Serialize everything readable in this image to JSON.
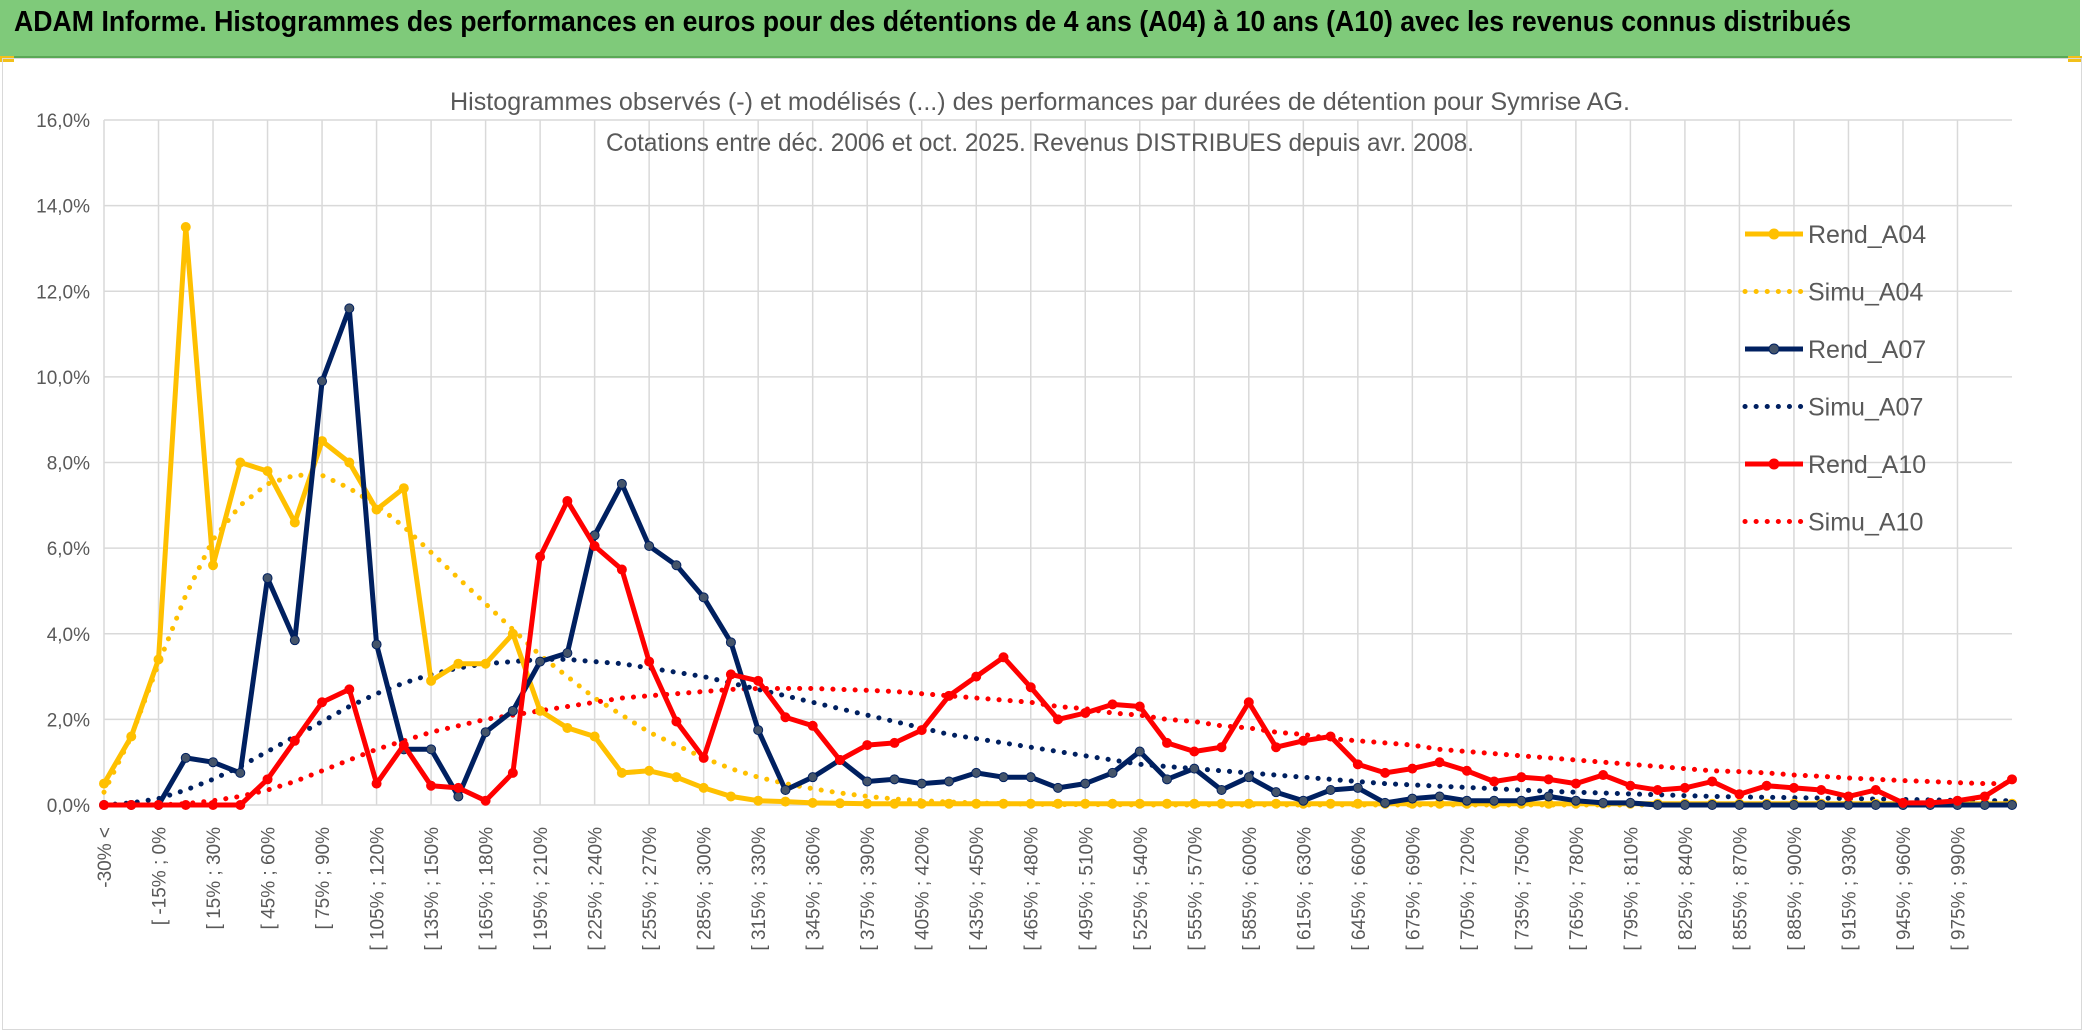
{
  "banner": {
    "title": "ADAM Informe. Histogrammes des performances en euros pour des détentions de 4 ans (A04) à 10 ans (A10) avec les revenus connus distribués"
  },
  "colors": {
    "banner": "#7fca7a",
    "A04": "#FFC000",
    "A07": "#002060",
    "A10": "#FF0000",
    "marker_A04": "#FFC000",
    "marker_A07": "#44546A",
    "marker_A10": "#FF0000"
  },
  "chart_data": {
    "type": "line",
    "title": "Histogrammes observés (-) et modélisés (...) des performances par durées de détention pour Symrise AG.",
    "subtitle": "Cotations entre déc. 2006 et oct. 2025. Revenus DISTRIBUES depuis avr. 2008.",
    "ylim": [
      0,
      16
    ],
    "yticks": [
      "0,0%",
      "2,0%",
      "4,0%",
      "6,0%",
      "8,0%",
      "10,0%",
      "12,0%",
      "14,0%",
      "16,0%"
    ],
    "grid": true,
    "legend_position": "right",
    "x_tick_labels": [
      "-30% <",
      "[ -15% ; 0%",
      "[ 15% ; 30%",
      "[ 45% ; 60%",
      "[ 75% ; 90%",
      "[ 105% ; 120%",
      "[ 135% ; 150%",
      "[ 165% ; 180%",
      "[ 195% ; 210%",
      "[ 225% ; 240%",
      "[ 255% ; 270%",
      "[ 285% ; 300%",
      "[ 315% ; 330%",
      "[ 345% ; 360%",
      "[ 375% ; 390%",
      "[ 405% ; 420%",
      "[ 435% ; 450%",
      "[ 465% ; 480%",
      "[ 495% ; 510%",
      "[ 525% ; 540%",
      "[ 555% ; 570%",
      "[ 585% ; 600%",
      "[ 615% ; 630%",
      "[ 645% ; 660%",
      "[ 675% ; 690%",
      "[ 705% ; 720%",
      "[ 735% ; 750%",
      "[ 765% ; 780%",
      "[ 795% ; 810%",
      "[ 825% ; 840%",
      "[ 855% ; 870%",
      "[ 885% ; 900%",
      "[ 915% ; 930%",
      "[ 945% ; 960%",
      "[ 975% ; 990%"
    ],
    "n_points": 71,
    "series": [
      {
        "name": "Rend_A04",
        "style": "solid",
        "color": "#FFC000",
        "values": [
          0.5,
          1.6,
          3.4,
          13.5,
          5.6,
          8.0,
          7.8,
          6.6,
          8.5,
          8.0,
          6.9,
          7.4,
          2.9,
          3.3,
          3.3,
          4.0,
          2.2,
          1.8,
          1.6,
          0.75,
          0.8,
          0.65,
          0.4,
          0.2,
          0.1,
          0.08,
          0.05,
          0.04,
          0.03,
          0.03,
          0.03,
          0.03,
          0.03,
          0.03,
          0.03,
          0.03,
          0.03,
          0.03,
          0.03,
          0.03,
          0.03,
          0.03,
          0.03,
          0.03,
          0.03,
          0.03,
          0.03,
          0.03,
          0.03,
          0.03,
          0.03,
          0.03,
          0.03,
          0.03,
          0.03,
          0.03,
          0.03,
          0.03,
          0.03,
          0.03,
          0.03,
          0.03,
          0.03,
          0.03,
          0.03,
          0.03,
          0.03,
          0.03,
          0.03,
          0.03,
          0.03
        ]
      },
      {
        "name": "Simu_A04",
        "style": "dotted",
        "color": "#FFC000",
        "values": [
          0.3,
          1.6,
          3.3,
          4.9,
          6.2,
          7.0,
          7.5,
          7.7,
          7.7,
          7.4,
          7.0,
          6.5,
          5.9,
          5.3,
          4.7,
          4.1,
          3.5,
          3.0,
          2.5,
          2.1,
          1.7,
          1.4,
          1.1,
          0.85,
          0.65,
          0.5,
          0.38,
          0.28,
          0.2,
          0.14,
          0.1,
          0.07,
          0.05,
          0.03,
          0.02,
          0.01,
          0.01,
          0.01,
          0.0,
          0.0,
          0.0,
          0.0,
          0.0,
          0.0,
          0.0,
          0.0,
          0.0,
          0.0,
          0.0,
          0.0,
          0.0,
          0.0,
          0.0,
          0.0,
          0.0,
          0.0,
          0.0,
          0.0,
          0.0,
          0.0,
          0.0,
          0.0,
          0.0,
          0.0,
          0.0,
          0.0,
          0.0,
          0.0,
          0.0,
          0.0,
          0.0
        ]
      },
      {
        "name": "Rend_A07",
        "style": "solid",
        "color": "#002060",
        "values": [
          0.0,
          0.0,
          0.0,
          1.1,
          1.0,
          0.75,
          5.3,
          3.85,
          9.9,
          11.6,
          3.75,
          1.3,
          1.3,
          0.2,
          1.7,
          2.2,
          3.35,
          3.55,
          6.3,
          7.5,
          6.05,
          5.6,
          4.85,
          3.8,
          1.75,
          0.35,
          0.65,
          1.05,
          0.55,
          0.6,
          0.5,
          0.55,
          0.75,
          0.65,
          0.65,
          0.4,
          0.5,
          0.75,
          1.25,
          0.6,
          0.85,
          0.35,
          0.65,
          0.3,
          0.1,
          0.35,
          0.4,
          0.05,
          0.15,
          0.2,
          0.1,
          0.1,
          0.1,
          0.2,
          0.1,
          0.05,
          0.05,
          0.0,
          0.0,
          0.0,
          0.0,
          0.0,
          0.0,
          0.0,
          0.0,
          0.0,
          0.0,
          0.0,
          0.0,
          0.0,
          0.0
        ]
      },
      {
        "name": "Simu_A07",
        "style": "dotted",
        "color": "#002060",
        "values": [
          0.0,
          0.05,
          0.15,
          0.35,
          0.6,
          0.9,
          1.25,
          1.6,
          1.95,
          2.3,
          2.6,
          2.85,
          3.05,
          3.2,
          3.3,
          3.35,
          3.4,
          3.4,
          3.35,
          3.3,
          3.2,
          3.1,
          3.0,
          2.85,
          2.7,
          2.55,
          2.4,
          2.25,
          2.1,
          1.95,
          1.8,
          1.65,
          1.55,
          1.45,
          1.35,
          1.25,
          1.15,
          1.05,
          0.95,
          0.9,
          0.85,
          0.8,
          0.75,
          0.7,
          0.65,
          0.6,
          0.55,
          0.5,
          0.47,
          0.44,
          0.41,
          0.38,
          0.35,
          0.32,
          0.3,
          0.28,
          0.26,
          0.24,
          0.22,
          0.2,
          0.19,
          0.18,
          0.17,
          0.16,
          0.15,
          0.14,
          0.13,
          0.12,
          0.11,
          0.1,
          0.1
        ]
      },
      {
        "name": "Rend_A10",
        "style": "solid",
        "color": "#FF0000",
        "values": [
          0.0,
          0.0,
          0.0,
          0.0,
          0.0,
          0.0,
          0.6,
          1.5,
          2.4,
          2.7,
          0.5,
          1.4,
          0.45,
          0.4,
          0.1,
          0.75,
          5.8,
          7.1,
          6.05,
          5.5,
          3.35,
          1.95,
          1.1,
          3.05,
          2.9,
          2.05,
          1.85,
          1.05,
          1.4,
          1.45,
          1.75,
          2.55,
          3.0,
          3.45,
          2.75,
          2.0,
          2.15,
          2.35,
          2.3,
          1.45,
          1.25,
          1.35,
          2.4,
          1.35,
          1.5,
          1.6,
          0.95,
          0.75,
          0.85,
          1.0,
          0.8,
          0.55,
          0.65,
          0.6,
          0.5,
          0.7,
          0.45,
          0.35,
          0.4,
          0.55,
          0.25,
          0.45,
          0.4,
          0.35,
          0.2,
          0.35,
          0.05,
          0.05,
          0.1,
          0.2,
          0.6
        ]
      },
      {
        "name": "Simu_A10",
        "style": "dotted",
        "color": "#FF0000",
        "values": [
          0.0,
          0.0,
          0.0,
          0.03,
          0.1,
          0.2,
          0.35,
          0.55,
          0.8,
          1.05,
          1.3,
          1.5,
          1.7,
          1.85,
          2.0,
          2.1,
          2.2,
          2.3,
          2.4,
          2.5,
          2.55,
          2.6,
          2.65,
          2.7,
          2.72,
          2.72,
          2.72,
          2.7,
          2.68,
          2.65,
          2.6,
          2.55,
          2.5,
          2.45,
          2.4,
          2.3,
          2.25,
          2.15,
          2.1,
          2.0,
          1.95,
          1.85,
          1.8,
          1.7,
          1.65,
          1.55,
          1.5,
          1.45,
          1.4,
          1.3,
          1.25,
          1.2,
          1.15,
          1.1,
          1.05,
          1.0,
          0.95,
          0.9,
          0.85,
          0.8,
          0.78,
          0.75,
          0.7,
          0.67,
          0.63,
          0.6,
          0.57,
          0.55,
          0.52,
          0.5,
          0.5
        ]
      }
    ]
  }
}
